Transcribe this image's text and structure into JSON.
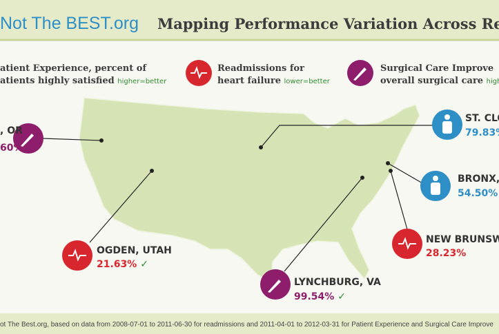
{
  "header": {
    "site": "Not The BEST.org",
    "title": "Mapping Performance Variation Across Re"
  },
  "legend": [
    {
      "line1": "atient Experience, percent of",
      "line2": "atients highly satisfied",
      "note": "higher=better"
    },
    {
      "line1": "Readmissions for",
      "line2": "heart failure",
      "note": "lower=better"
    },
    {
      "line1": "Surgical Care Improve",
      "line2": "overall surgical care",
      "note": "high"
    }
  ],
  "locations": [
    {
      "name": ", OR",
      "value": "60%"
    },
    {
      "name": "ST. CLO",
      "value": "79.83%"
    },
    {
      "name": "BRONX,",
      "value": "54.50%"
    },
    {
      "name": "OGDEN, UTAH",
      "value": "21.63%",
      "check": "✓"
    },
    {
      "name": "NEW BRUNSW",
      "value": "28.23%"
    },
    {
      "name": "LYNCHBURG, VA",
      "value": "99.54%",
      "check": "✓"
    }
  ],
  "footer": "ot The Best.org, based on data from 2008-07-01 to 2011-06-30 for readmissions and  2011-04-01 to 2012-03-31 for Patient Experience and Surgical Care Improve"
}
